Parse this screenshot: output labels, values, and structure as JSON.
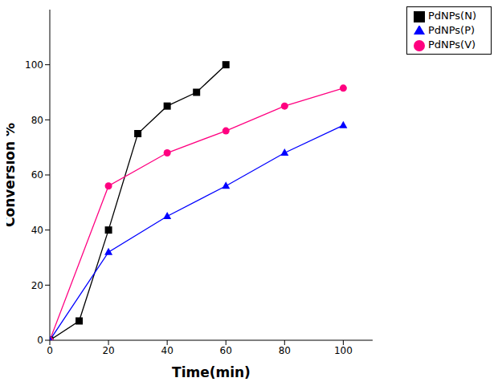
{
  "chart_data": {
    "type": "line",
    "x_label": "Time(min)",
    "y_label": "Conversion %",
    "xlim": [
      0,
      110
    ],
    "xticks": [
      0,
      20,
      40,
      60,
      80,
      100
    ],
    "ylim": [
      0,
      120
    ],
    "yticks": [
      0,
      20,
      40,
      60,
      80,
      100
    ],
    "grid": false,
    "legend": "top-right",
    "series": [
      {
        "name": "PdNPs(N)",
        "color": "#000000",
        "marker": "square",
        "x": [
          0,
          10,
          20,
          30,
          40,
          50,
          60
        ],
        "values": [
          0,
          7,
          40,
          75,
          85,
          90,
          100
        ]
      },
      {
        "name": "PdNPs(V)",
        "color": "#ff0080",
        "marker": "circle",
        "x": [
          0,
          20,
          40,
          60,
          80,
          100
        ],
        "values": [
          0,
          56,
          68,
          76,
          85,
          91.5
        ]
      },
      {
        "name": "PdNPs(P)",
        "color": "#0000ff",
        "marker": "triangle",
        "x": [
          0,
          20,
          40,
          60,
          80,
          100
        ],
        "values": [
          0,
          32,
          45,
          56,
          68,
          78
        ]
      }
    ]
  }
}
